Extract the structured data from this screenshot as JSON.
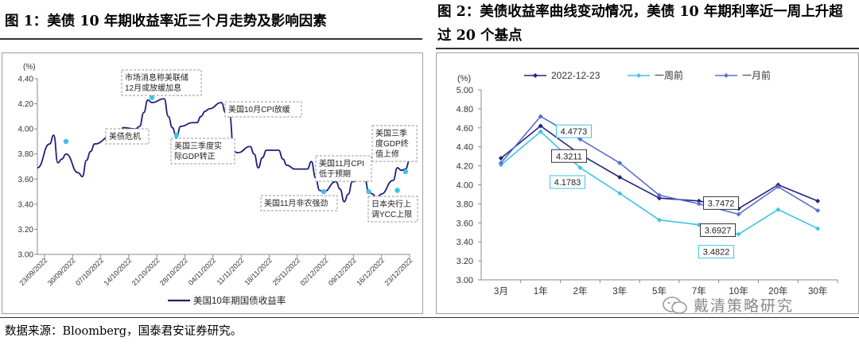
{
  "figure1": {
    "title": "图 1：美债 10 年期收益率近三个月走势及影响因素",
    "chart_data": {
      "type": "line",
      "title": "",
      "ylabel": "(%)",
      "ylim": [
        3.0,
        4.4
      ],
      "yticks": [
        "3.00",
        "3.20",
        "3.40",
        "3.60",
        "3.80",
        "4.00",
        "4.20",
        "4.40"
      ],
      "xticks": [
        "23/09/2022",
        "30/09/2022",
        "07/10/2022",
        "14/10/2022",
        "21/10/2022",
        "28/10/2022",
        "04/11/2022",
        "11/11/2022",
        "18/11/2022",
        "25/11/2022",
        "02/12/2022",
        "09/12/2022",
        "16/12/2022",
        "23/12/2022"
      ],
      "legend": "美国10年期国债收益率",
      "color": "#1f1f7a",
      "series": [
        {
          "name": "美国10年期国债收益率",
          "x": [
            "2022-09-23",
            "2022-09-26",
            "2022-09-27",
            "2022-09-28",
            "2022-09-29",
            "2022-09-30",
            "2022-10-03",
            "2022-10-04",
            "2022-10-05",
            "2022-10-06",
            "2022-10-07",
            "2022-10-11",
            "2022-10-12",
            "2022-10-13",
            "2022-10-14",
            "2022-10-17",
            "2022-10-18",
            "2022-10-19",
            "2022-10-20",
            "2022-10-21",
            "2022-10-24",
            "2022-10-25",
            "2022-10-26",
            "2022-10-27",
            "2022-10-28",
            "2022-10-31",
            "2022-11-01",
            "2022-11-02",
            "2022-11-03",
            "2022-11-04",
            "2022-11-07",
            "2022-11-08",
            "2022-11-09",
            "2022-11-10",
            "2022-11-11",
            "2022-11-14",
            "2022-11-15",
            "2022-11-16",
            "2022-11-17",
            "2022-11-18",
            "2022-11-21",
            "2022-11-22",
            "2022-11-23",
            "2022-11-25",
            "2022-11-28",
            "2022-11-29",
            "2022-11-30",
            "2022-12-01",
            "2022-12-02",
            "2022-12-05",
            "2022-12-06",
            "2022-12-07",
            "2022-12-08",
            "2022-12-09",
            "2022-12-12",
            "2022-12-13",
            "2022-12-14",
            "2022-12-15",
            "2022-12-16",
            "2022-12-19",
            "2022-12-20",
            "2022-12-21",
            "2022-12-22",
            "2022-12-23"
          ],
          "y": [
            3.69,
            3.88,
            3.95,
            3.73,
            3.76,
            3.8,
            3.65,
            3.62,
            3.75,
            3.82,
            3.88,
            3.94,
            3.9,
            3.95,
            4.01,
            4.0,
            4.02,
            4.13,
            4.23,
            4.21,
            4.24,
            4.1,
            4.01,
            3.93,
            4.02,
            4.05,
            4.05,
            4.1,
            4.14,
            4.16,
            4.21,
            4.13,
            4.11,
            3.82,
            3.81,
            3.86,
            3.8,
            3.69,
            3.77,
            3.83,
            3.83,
            3.76,
            3.71,
            3.68,
            3.68,
            3.74,
            3.61,
            3.51,
            3.5,
            3.58,
            3.52,
            3.42,
            3.48,
            3.58,
            3.61,
            3.5,
            3.48,
            3.44,
            3.48,
            3.59,
            3.69,
            3.67,
            3.68,
            3.75
          ]
        }
      ],
      "annotations": [
        {
          "text": "美债危机",
          "x": "2022-09-30",
          "y": 3.9
        },
        {
          "text": "市场消息称美联储12月或放缓加息",
          "x": "2022-10-21",
          "y": 4.25
        },
        {
          "text": "美国三季度实际GDP转正",
          "x": "2022-10-27",
          "y": 3.95
        },
        {
          "text": "美国10月CPI放缓",
          "x": "2022-11-10",
          "y": 4.14
        },
        {
          "text": "美国11月CPI低于预期",
          "x": "2022-12-13",
          "y": 3.5
        },
        {
          "text": "美国11月非农强劲",
          "x": "2022-12-02",
          "y": 3.5
        },
        {
          "text": "美国三季度GDP终值上修",
          "x": "2022-12-22",
          "y": 3.66
        },
        {
          "text": "日本央行上调YCC上限",
          "x": "2022-12-20",
          "y": 3.51
        }
      ]
    }
  },
  "figure2": {
    "title": "图 2：美债收益率曲线变动情况，美债 10 年期利率近一周上升超过 20 个基点",
    "chart_data": {
      "type": "line",
      "title": "",
      "ylabel": "(%)",
      "ylim": [
        3.0,
        5.0
      ],
      "yticks": [
        "3.00",
        "3.20",
        "3.40",
        "3.60",
        "3.80",
        "4.00",
        "4.20",
        "4.40",
        "4.60",
        "4.80",
        "5.00"
      ],
      "categories": [
        "3月",
        "1年",
        "2年",
        "3年",
        "5年",
        "7年",
        "10年",
        "20年",
        "30年"
      ],
      "legend_position": "top",
      "series": [
        {
          "name": "2022-12-23",
          "color": "#23237a",
          "values": [
            4.28,
            4.62,
            4.32,
            4.08,
            3.86,
            3.83,
            3.75,
            4.0,
            3.83
          ]
        },
        {
          "name": "一周前",
          "color": "#3cc4e8",
          "values": [
            4.21,
            4.56,
            4.18,
            3.91,
            3.63,
            3.58,
            3.48,
            3.74,
            3.54
          ]
        },
        {
          "name": "一月前",
          "color": "#5a6fd4",
          "values": [
            4.23,
            4.72,
            4.48,
            4.23,
            3.89,
            3.8,
            3.69,
            3.98,
            3.73
          ]
        }
      ],
      "data_labels": [
        {
          "text": "4.4773",
          "series": "一月前",
          "category": "2年"
        },
        {
          "text": "4.3211",
          "series": "2022-12-23",
          "category": "2年"
        },
        {
          "text": "4.1783",
          "series": "一周前",
          "category": "2年"
        },
        {
          "text": "3.7472",
          "series": "2022-12-23",
          "category": "10年"
        },
        {
          "text": "3.6927",
          "series": "一月前",
          "category": "10年"
        },
        {
          "text": "3.4822",
          "series": "一周前",
          "category": "10年"
        }
      ]
    }
  },
  "source": "数据来源：Bloomberg，国泰君安证券研究。",
  "watermark": "戴清策略研究"
}
